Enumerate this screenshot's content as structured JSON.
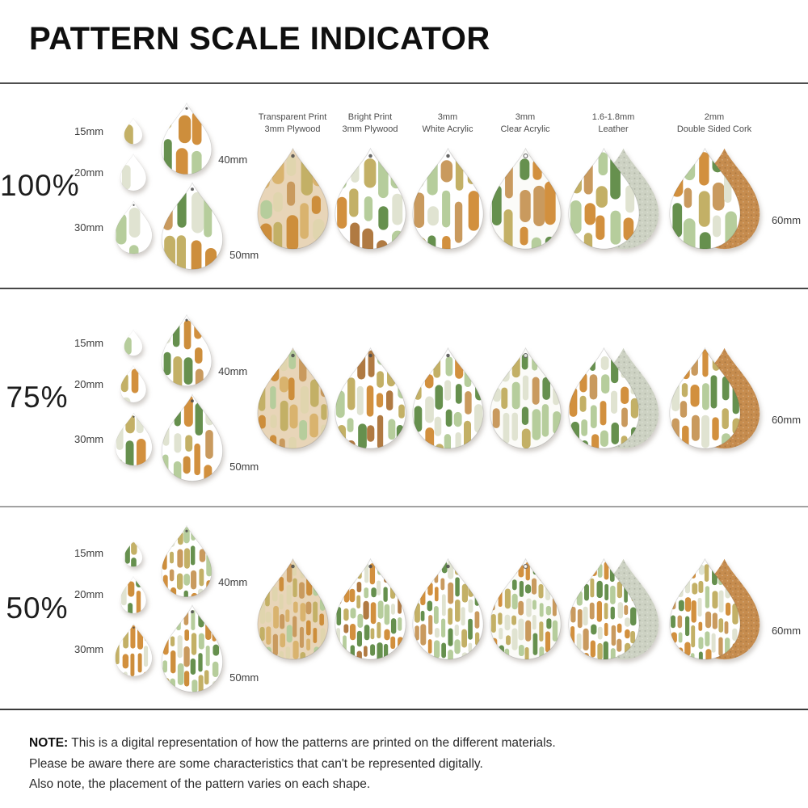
{
  "title": "PATTERN SCALE INDICATOR",
  "columns": [
    {
      "id": "transparent-plywood",
      "label_line1": "Transparent Print",
      "label_line2": "3mm Plywood"
    },
    {
      "id": "bright-plywood",
      "label_line1": "Bright Print",
      "label_line2": "3mm Plywood"
    },
    {
      "id": "white-acrylic",
      "label_line1": "3mm",
      "label_line2": "White Acrylic"
    },
    {
      "id": "clear-acrylic",
      "label_line1": "3mm",
      "label_line2": "Clear Acrylic"
    },
    {
      "id": "leather",
      "label_line1": "1.6-1.8mm",
      "label_line2": "Leather"
    },
    {
      "id": "cork",
      "label_line1": "2mm",
      "label_line2": "Double Sided Cork"
    }
  ],
  "rows": [
    {
      "scale_label": "100%",
      "pattern_scale": 1.0,
      "samples": [
        {
          "label": "15mm",
          "mm": 15
        },
        {
          "label": "20mm",
          "mm": 20
        },
        {
          "label": "30mm",
          "mm": 30
        },
        {
          "label": "40mm",
          "mm": 40
        },
        {
          "label": "50mm",
          "mm": 50
        }
      ],
      "main_mm": 60,
      "main_label": "60mm"
    },
    {
      "scale_label": "75%",
      "pattern_scale": 0.75,
      "samples": [
        {
          "label": "15mm",
          "mm": 15
        },
        {
          "label": "20mm",
          "mm": 20
        },
        {
          "label": "30mm",
          "mm": 30
        },
        {
          "label": "40mm",
          "mm": 40
        },
        {
          "label": "50mm",
          "mm": 50
        }
      ],
      "main_mm": 60,
      "main_label": "60mm"
    },
    {
      "scale_label": "50%",
      "pattern_scale": 0.5,
      "samples": [
        {
          "label": "15mm",
          "mm": 15
        },
        {
          "label": "20mm",
          "mm": 20
        },
        {
          "label": "30mm",
          "mm": 30
        },
        {
          "label": "40mm",
          "mm": 40
        },
        {
          "label": "50mm",
          "mm": 50
        }
      ],
      "main_mm": 60,
      "main_label": "60mm"
    }
  ],
  "note": {
    "prefix": "NOTE:",
    "lines": [
      "This is a digital representation of how the patterns are printed on the different materials.",
      "Please be aware there are some characteristics that can't be represented digitally.",
      "Also note, the placement of the pattern varies on each shape."
    ]
  },
  "pattern_colors": {
    "orange": "#d2903e",
    "tan": "#c99a5e",
    "olive": "#c3b066",
    "green": "#66904e",
    "sage": "#b6cd9c",
    "pale_sage": "#e0e3d1",
    "cream": "#e0d5ae",
    "ochre": "#cd8e3c",
    "light_tan": "#d9b36e",
    "brown": "#b07a42"
  },
  "materials": {
    "transparent-plywood": {
      "bg": "#e8d5b8",
      "strokes": [
        "ochre",
        "light_tan",
        "olive",
        "cream",
        "tan",
        "sage"
      ]
    },
    "bright-plywood": {
      "bg": "#ffffff",
      "strokes": [
        "orange",
        "green",
        "sage",
        "brown",
        "pale_sage",
        "olive"
      ]
    },
    "white-acrylic": {
      "bg": "#ffffff",
      "strokes": [
        "orange",
        "green",
        "sage",
        "olive",
        "pale_sage",
        "tan"
      ]
    },
    "clear-acrylic": {
      "bg": "#fbfbf8",
      "strokes": [
        "green",
        "orange",
        "sage",
        "tan",
        "pale_sage",
        "olive"
      ]
    },
    "leather": {
      "bg": "#ffffff",
      "strokes": [
        "orange",
        "green",
        "sage",
        "tan",
        "pale_sage",
        "olive"
      ],
      "back": "#cdd2c3"
    },
    "cork": {
      "bg": "#ffffff",
      "strokes": [
        "sage",
        "pale_sage",
        "tan",
        "olive",
        "orange",
        "green"
      ],
      "back": "#c68c4e"
    },
    "sample": {
      "bg": "#ffffff",
      "strokes": [
        "orange",
        "green",
        "sage",
        "tan",
        "pale_sage",
        "olive",
        "ochre"
      ]
    }
  }
}
